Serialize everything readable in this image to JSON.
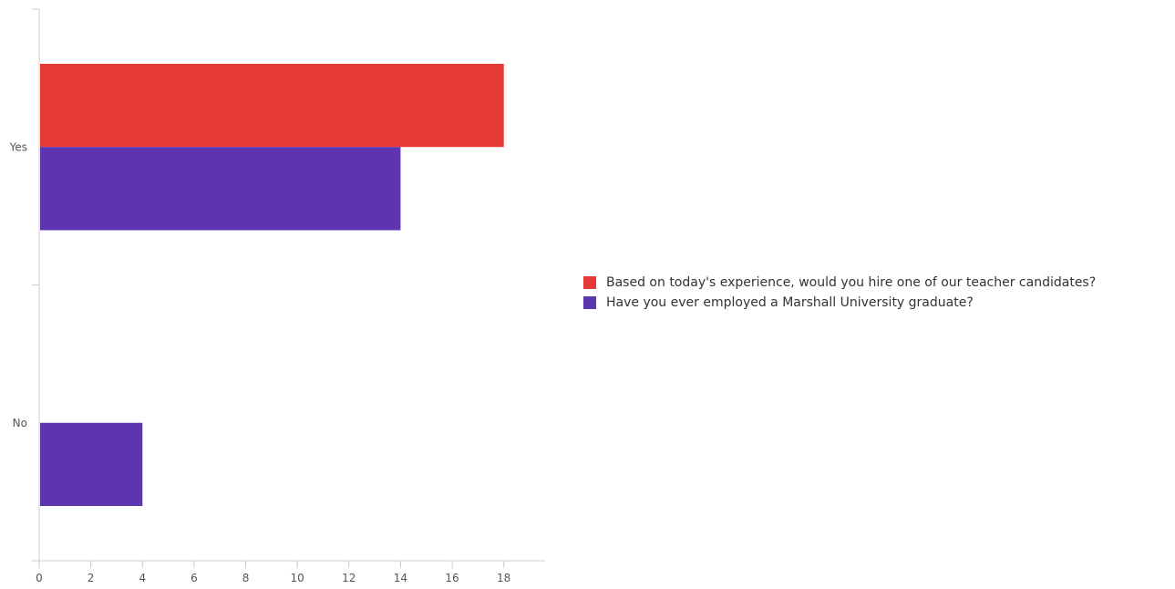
{
  "chart_data": {
    "type": "bar",
    "orientation": "horizontal",
    "categories": [
      "Yes",
      "No"
    ],
    "series": [
      {
        "name": "Based on today's experience, would you hire one of our teacher candidates?",
        "values": [
          18,
          0
        ],
        "color": "#e53935"
      },
      {
        "name": "Have you ever employed a Marshall University graduate?",
        "values": [
          14,
          4
        ],
        "color": "#5e35b1"
      }
    ],
    "xlim": [
      0,
      19.6
    ],
    "xticks": [
      0,
      2,
      4,
      6,
      8,
      10,
      12,
      14,
      16,
      18
    ],
    "grid": false,
    "legend_position": "right"
  }
}
